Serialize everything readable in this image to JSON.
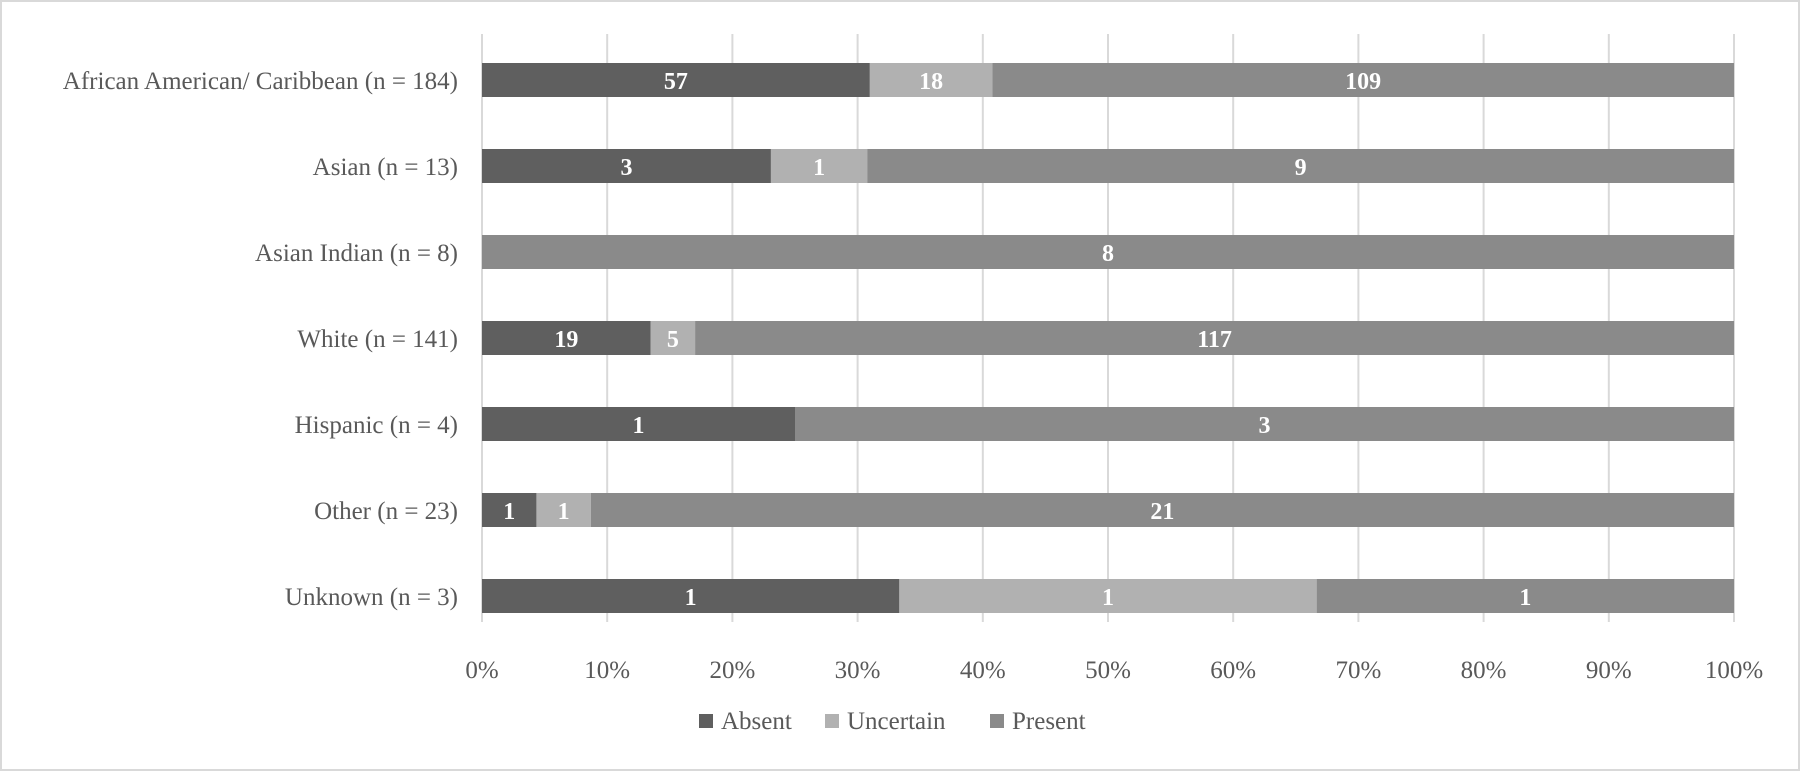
{
  "chart_data": {
    "type": "bar",
    "orientation": "horizontal",
    "stacked": "percent",
    "title": "",
    "xlabel": "",
    "ylabel": "",
    "categories": [
      "African American/ Caribbean (n = 184)",
      "Asian (n = 13)",
      "Asian Indian (n = 8)",
      "White (n = 141)",
      "Hispanic (n = 4)",
      "Other (n = 23)",
      "Unknown (n = 3)"
    ],
    "series": [
      {
        "name": "Absent",
        "color": "#5f5f5f",
        "values": [
          57,
          3,
          0,
          19,
          1,
          1,
          1
        ]
      },
      {
        "name": "Uncertain",
        "color": "#b1b1b1",
        "values": [
          18,
          1,
          0,
          5,
          0,
          1,
          1
        ]
      },
      {
        "name": "Present",
        "color": "#8a8a8a",
        "values": [
          109,
          9,
          8,
          117,
          3,
          21,
          1
        ]
      }
    ],
    "xlim": [
      0,
      100
    ],
    "x_ticks": [
      "0%",
      "10%",
      "20%",
      "30%",
      "40%",
      "50%",
      "60%",
      "70%",
      "80%",
      "90%",
      "100%"
    ],
    "grid": true,
    "legend_position": "bottom"
  }
}
